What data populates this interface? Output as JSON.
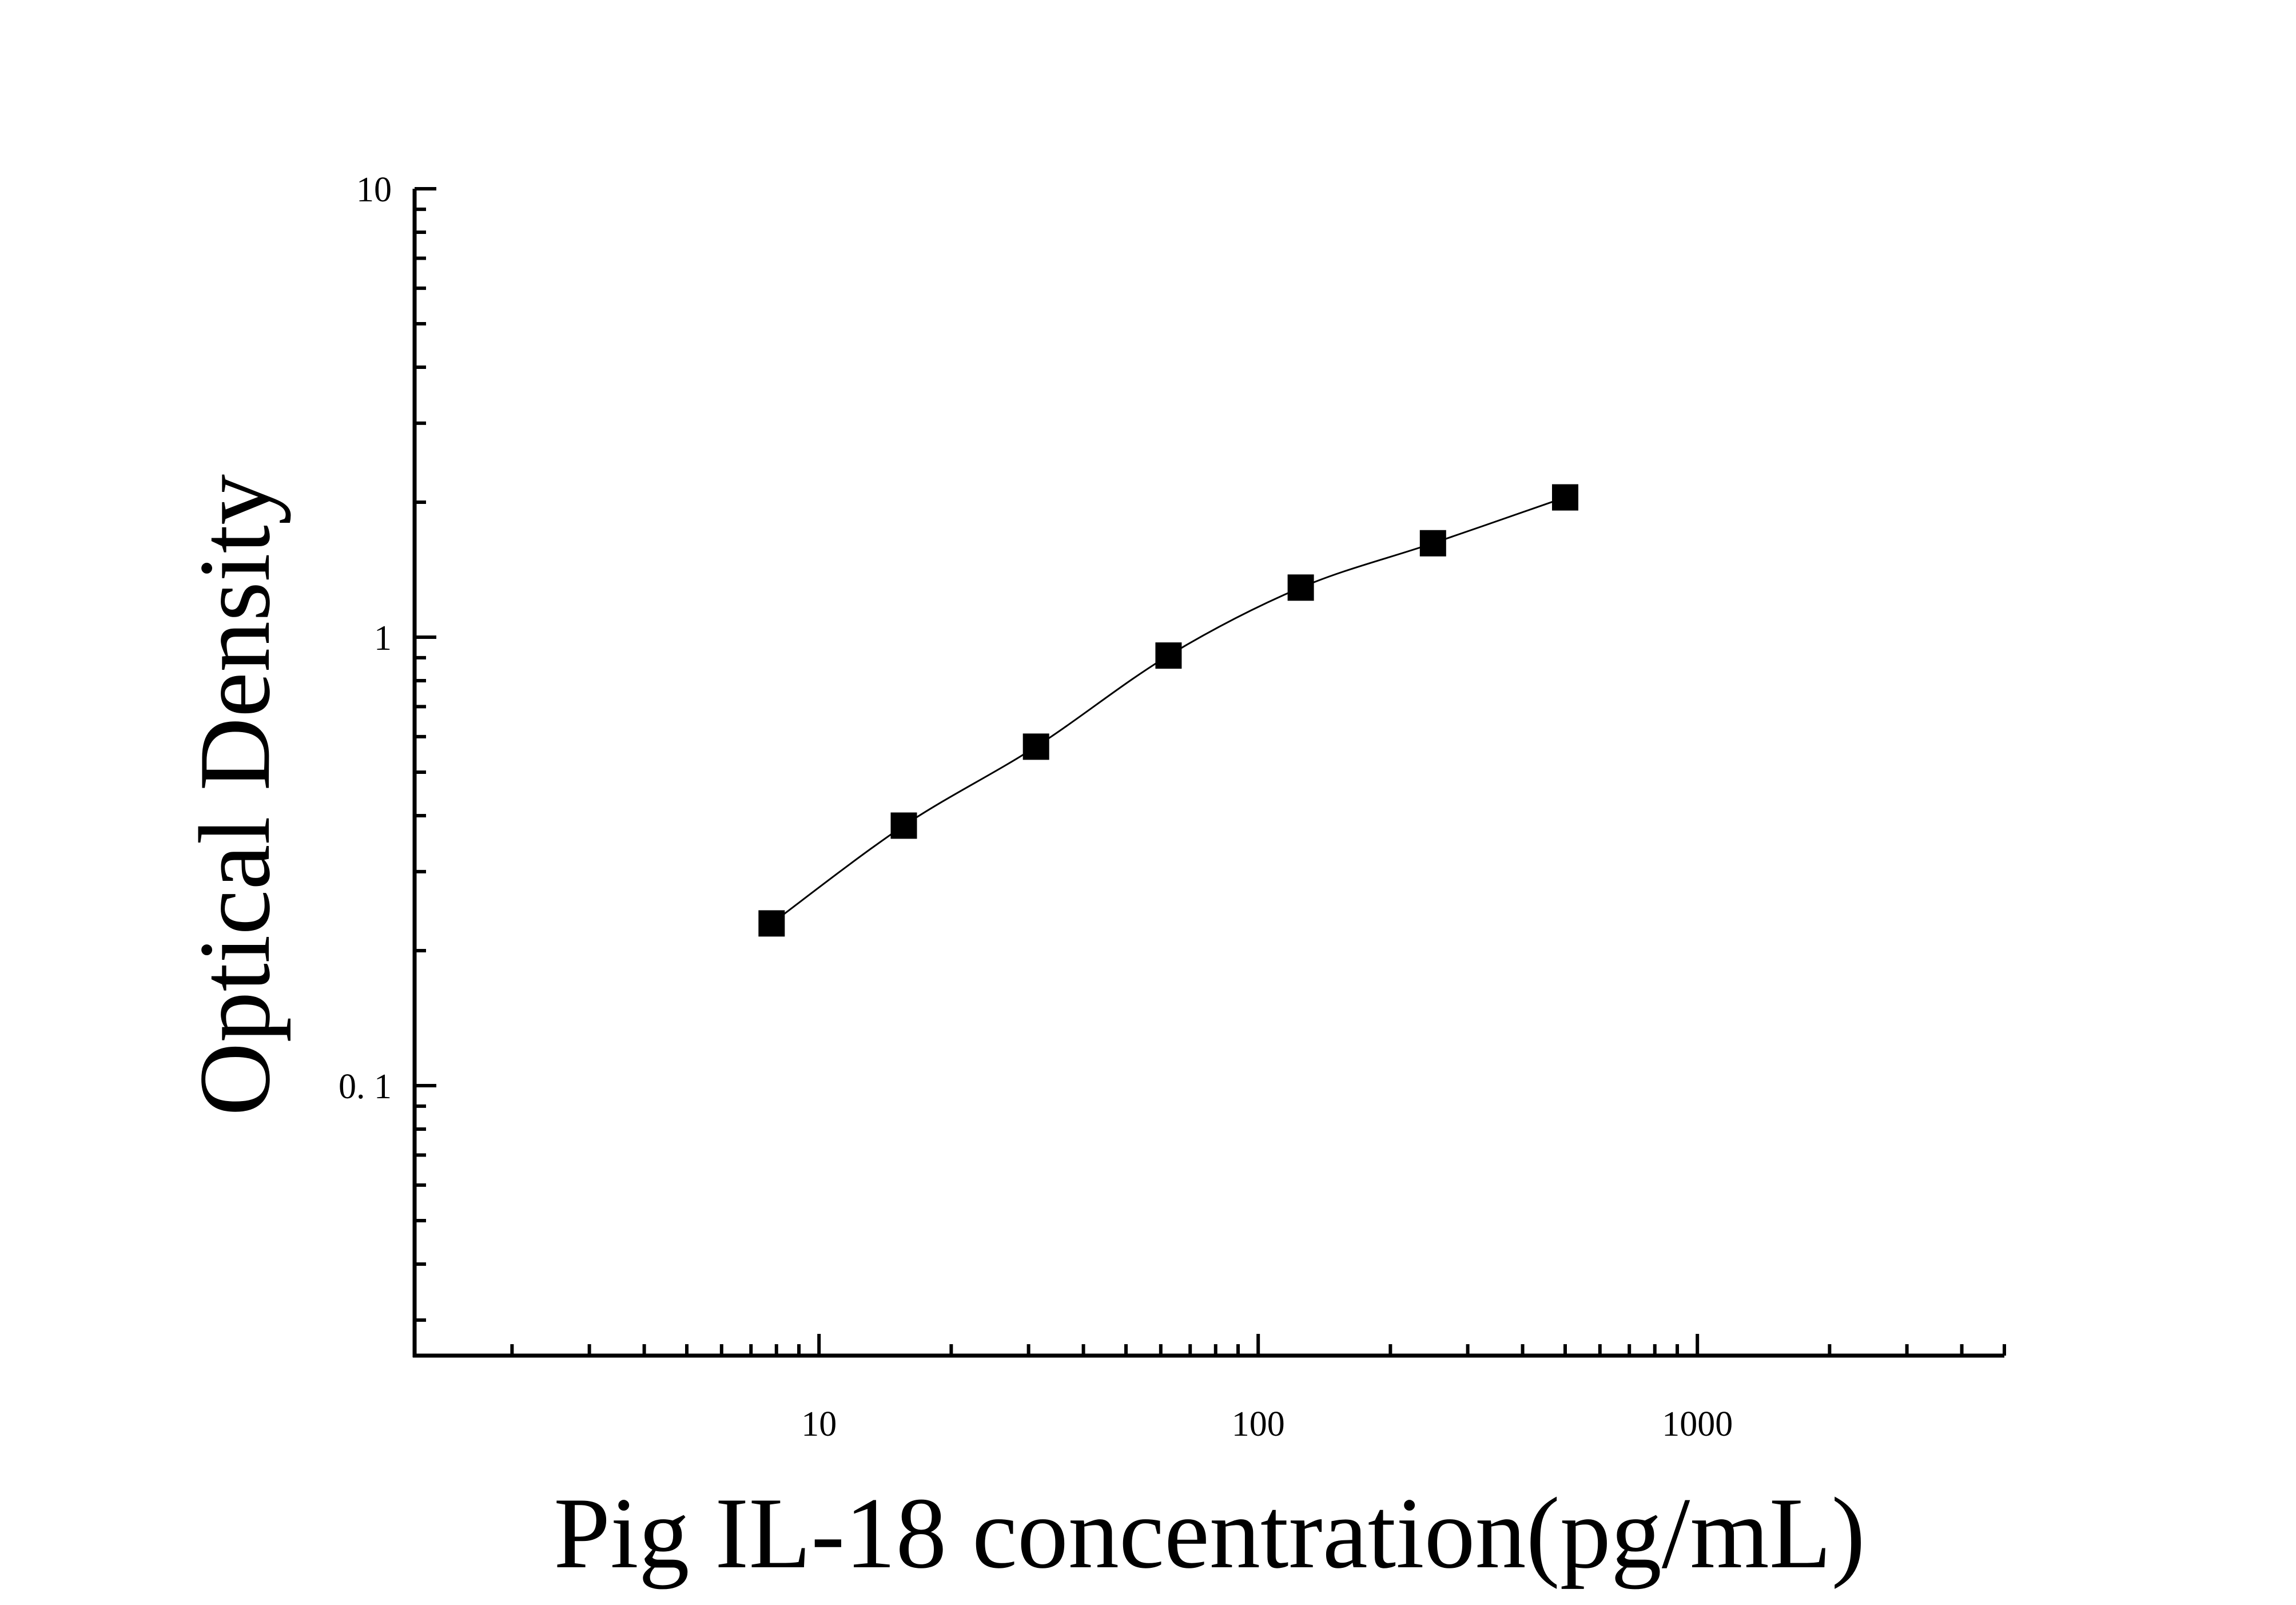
{
  "chart_data": {
    "type": "scatter",
    "title": "",
    "xlabel": "Pig IL-18 concentration(pg/mL)",
    "ylabel": "Optical Density",
    "xscale": "log",
    "yscale": "log",
    "xlim": [
      1.2,
      5000
    ],
    "ylim": [
      0.025,
      10
    ],
    "x_ticks": [
      {
        "value": 10,
        "label": "10"
      },
      {
        "value": 100,
        "label": "100"
      },
      {
        "value": 1000,
        "label": "1000"
      }
    ],
    "y_ticks": [
      {
        "value": 0.1,
        "label": "0. 1"
      },
      {
        "value": 1,
        "label": "1"
      },
      {
        "value": 10,
        "label": "10"
      }
    ],
    "grid": false,
    "legend": "none",
    "fit_curve": true,
    "series": [
      {
        "marker": "square",
        "color": "#000000",
        "x": [
          7.8,
          15.6,
          31.2,
          62.5,
          125,
          250,
          500
        ],
        "y": [
          0.23,
          0.38,
          0.57,
          0.91,
          1.29,
          1.62,
          2.05
        ]
      }
    ]
  }
}
